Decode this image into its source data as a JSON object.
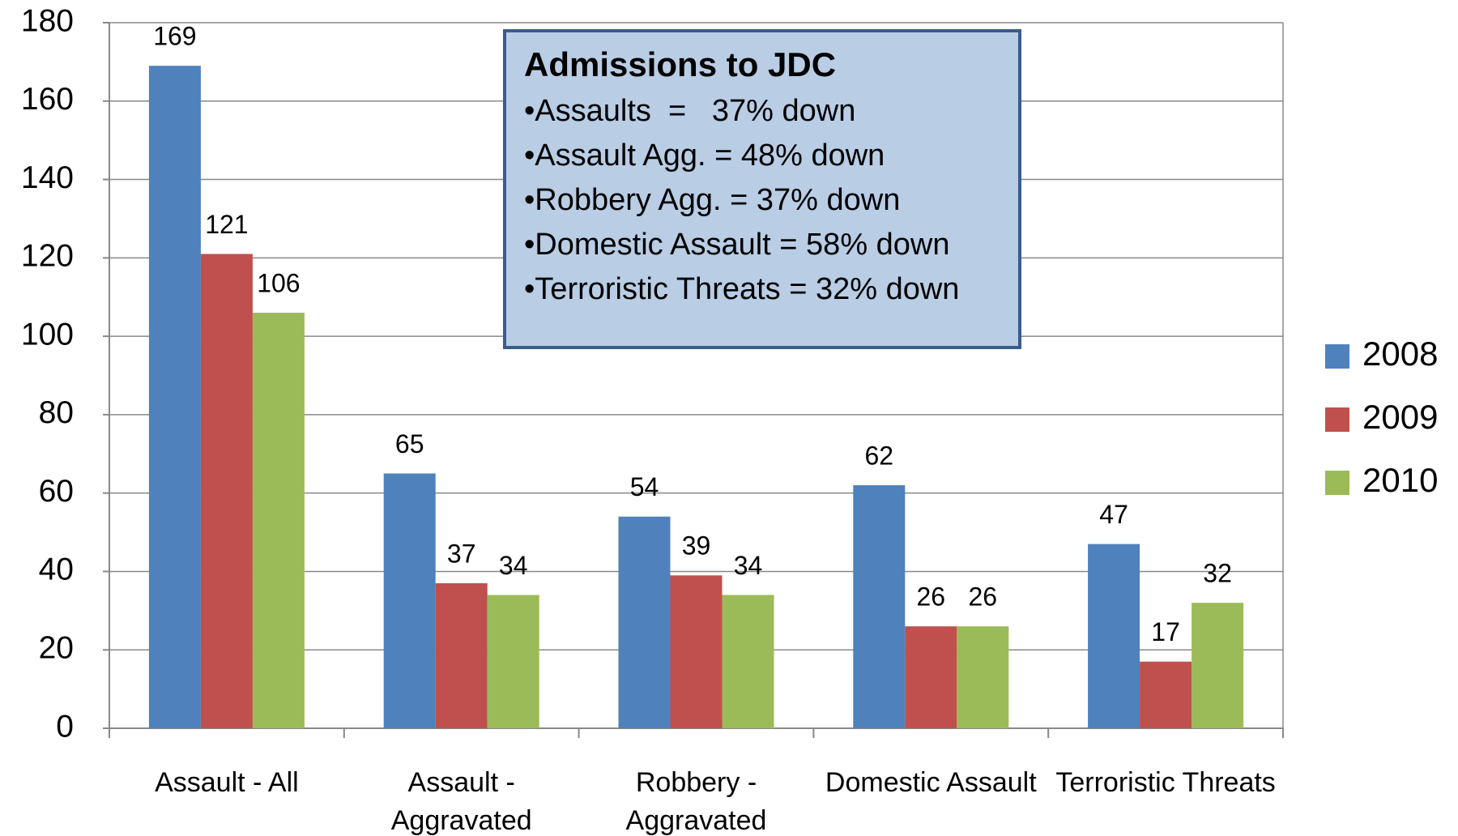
{
  "chart_data": {
    "type": "bar",
    "categories": [
      "Assault - All",
      "Assault - Aggravated",
      "Robbery - Aggravated",
      "Domestic Assault",
      "Terroristic Threats"
    ],
    "series": [
      {
        "name": "2008",
        "color": "#4f81bd",
        "values": [
          169,
          65,
          54,
          62,
          47
        ]
      },
      {
        "name": "2009",
        "color": "#c0504d",
        "values": [
          121,
          37,
          39,
          26,
          17
        ]
      },
      {
        "name": "2010",
        "color": "#9bbb59",
        "values": [
          106,
          34,
          34,
          26,
          32
        ]
      }
    ],
    "ylim": [
      0,
      180
    ],
    "yticks": [
      0,
      20,
      40,
      60,
      80,
      100,
      120,
      140,
      160,
      180
    ],
    "grid": true,
    "legend": "right",
    "annotation": {
      "title": "Admissions to JDC",
      "lines": [
        "•Assaults  =   37% down",
        "•Assault Agg. = 48% down",
        "•Robbery Agg. = 37% down",
        "•Domestic Assault = 58% down",
        "•Terroristic Threats = 32% down"
      ]
    }
  }
}
